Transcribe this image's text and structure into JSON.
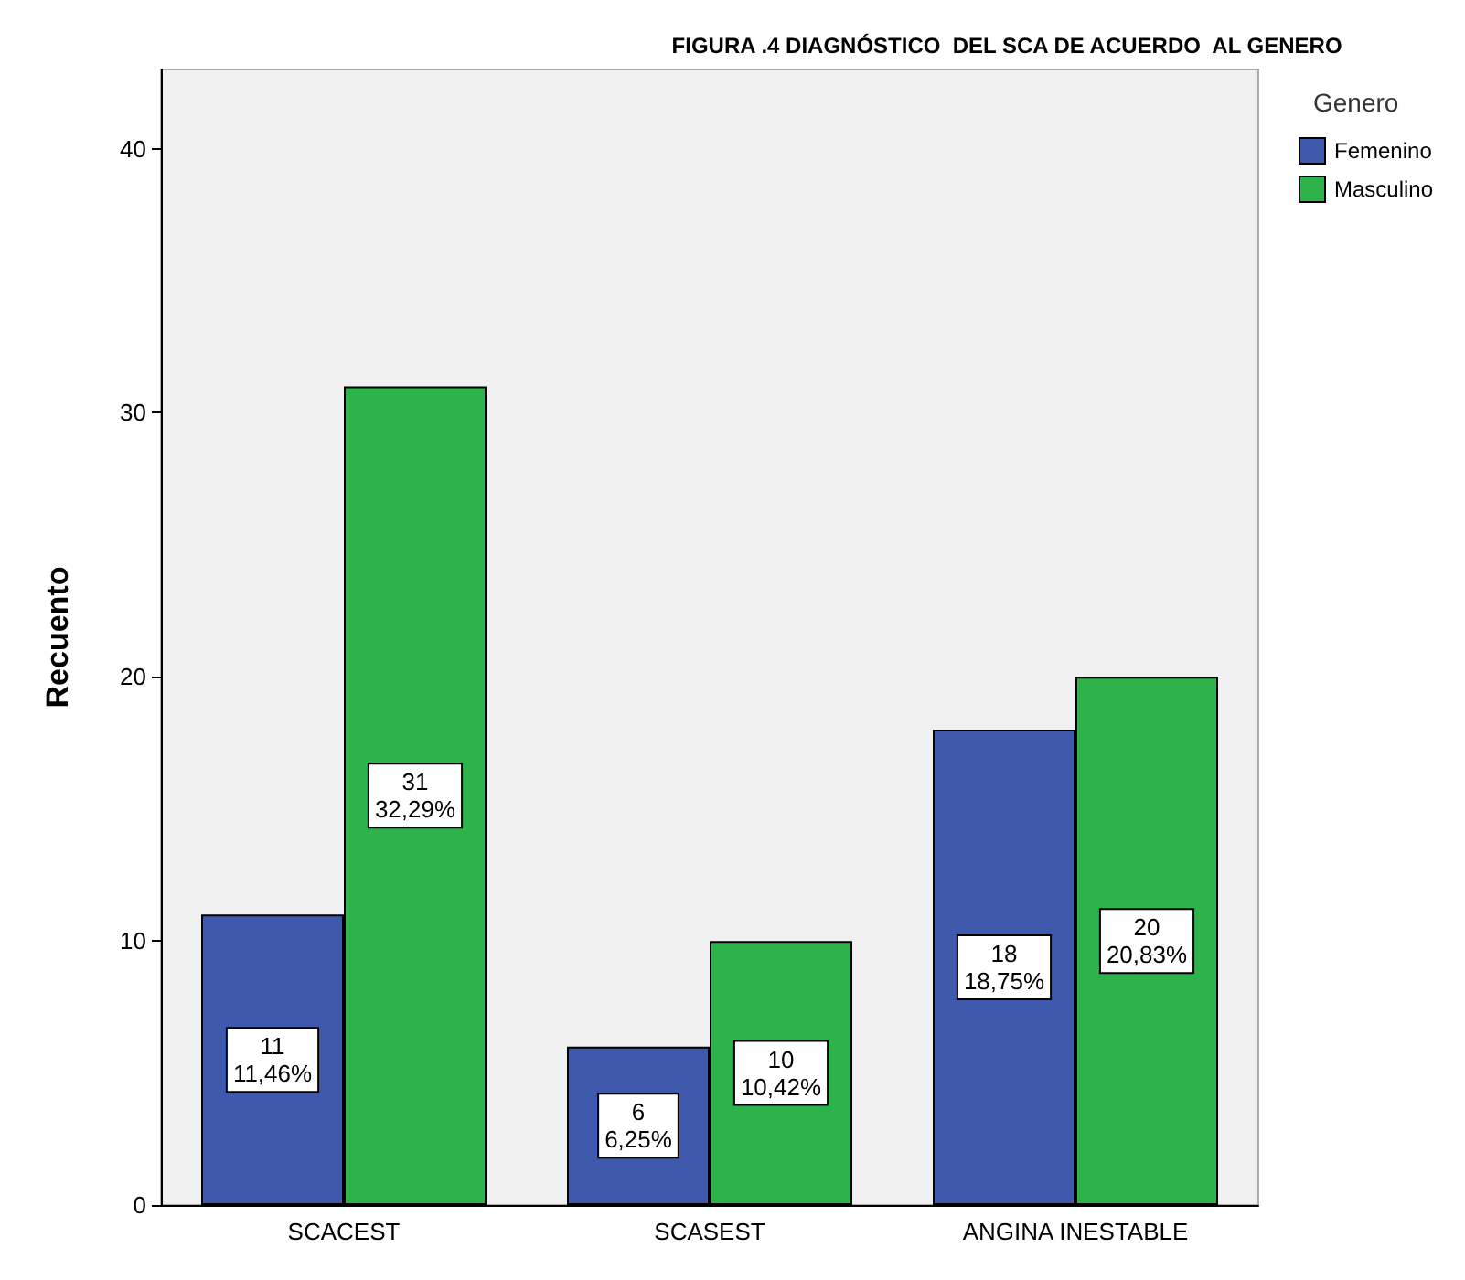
{
  "chart_data": {
    "type": "bar",
    "title": "FIGURA .4 DIAGNÓSTICO  DEL SCA DE ACUERDO  AL GENERO",
    "ylabel": "Recuento",
    "legend_title": "Genero",
    "categories": [
      "SCACEST",
      "SCASEST",
      "ANGINA INESTABLE"
    ],
    "series": [
      {
        "name": "Femenino",
        "color": "#3e58ac",
        "values": [
          11,
          6,
          18
        ],
        "value_labels": [
          "11\n11,46%",
          "6\n6,25%",
          "18\n18,75%"
        ]
      },
      {
        "name": "Masculino",
        "color": "#2db34a",
        "values": [
          31,
          10,
          20
        ],
        "value_labels": [
          "31\n32,29%",
          "10\n10,42%",
          "20\n20,83%"
        ]
      }
    ],
    "ylim": [
      0,
      43
    ],
    "yticks": [
      0,
      10,
      20,
      30,
      40
    ],
    "grid": false,
    "legend": "top right"
  }
}
